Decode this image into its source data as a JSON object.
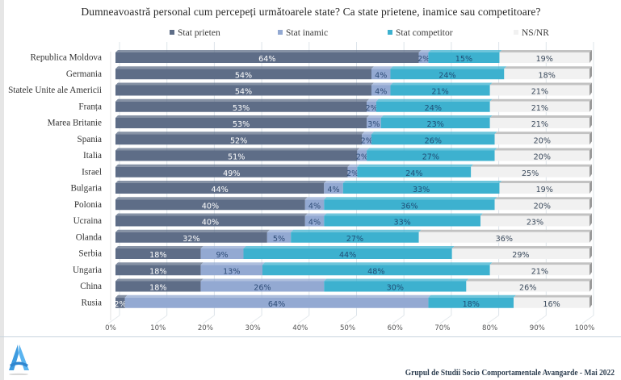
{
  "chart_data": {
    "type": "bar",
    "orientation": "horizontal",
    "stacked": "100%",
    "title": "Dumneavoastră personal cum percepeți următoarele state? Ca state prietene, inamice sau competitoare?",
    "xlabel": "",
    "ylabel": "",
    "xlim": [
      0,
      100
    ],
    "x_ticks": [
      "0%",
      "10%",
      "20%",
      "30%",
      "40%",
      "50%",
      "60%",
      "70%",
      "80%",
      "90%",
      "100%"
    ],
    "grid": true,
    "legend_position": "top",
    "categories": [
      "Republica Moldova",
      "Germania",
      "Statele Unite ale Americii",
      "Franța",
      "Marea Britanie",
      "Spania",
      "Italia",
      "Israel",
      "Bulgaria",
      "Polonia",
      "Ucraina",
      "Olanda",
      "Serbia",
      "Ungaria",
      "China",
      "Rusia"
    ],
    "series": [
      {
        "name": "Stat prieten",
        "color": "#5e6d87",
        "label_color": "#ffffff",
        "values": [
          64,
          54,
          54,
          53,
          53,
          52,
          51,
          49,
          44,
          40,
          40,
          32,
          18,
          18,
          18,
          2
        ]
      },
      {
        "name": "Stat inamic",
        "color": "#93a9d2",
        "label_color": "#2f4d78",
        "values": [
          2,
          4,
          4,
          2,
          3,
          2,
          2,
          2,
          4,
          4,
          4,
          5,
          9,
          13,
          26,
          64
        ]
      },
      {
        "name": "Stat competitor",
        "color": "#3db1cf",
        "label_color": "#1f4f77",
        "values": [
          15,
          24,
          21,
          24,
          23,
          26,
          27,
          24,
          33,
          36,
          33,
          27,
          44,
          48,
          30,
          18
        ]
      },
      {
        "name": "NS/NR",
        "color": "#f1f1f1",
        "label_color": "#3b4a5c",
        "values": [
          19,
          18,
          21,
          21,
          21,
          20,
          20,
          25,
          19,
          20,
          23,
          36,
          29,
          21,
          26,
          16
        ]
      }
    ]
  },
  "legend": {
    "items": [
      {
        "label": "Stat prieten",
        "color": "#5e6d87"
      },
      {
        "label": "Stat inamic",
        "color": "#93a9d2"
      },
      {
        "label": "Stat competitor",
        "color": "#3db1cf"
      },
      {
        "label": "NS/NR",
        "color": "#f1f1f1"
      }
    ]
  },
  "footer": {
    "source": "Grupul de Studii Socio Comportamentale Avangarde   - Mai 2022"
  },
  "logo": {
    "icon": "avangarde-a-logo-icon",
    "color": "#3d9be0"
  }
}
